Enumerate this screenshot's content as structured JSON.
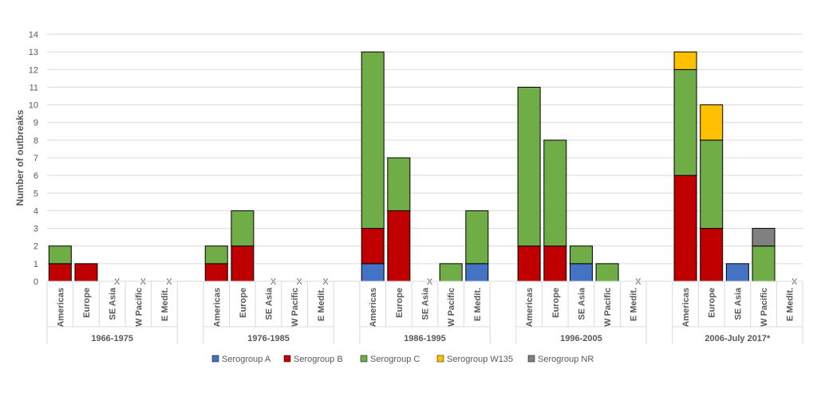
{
  "chart_data": {
    "type": "bar",
    "stacked": true,
    "ylabel": "Number of outbreaks",
    "ylim": [
      0,
      14
    ],
    "yticks": [
      0,
      1,
      2,
      3,
      4,
      5,
      6,
      7,
      8,
      9,
      10,
      11,
      12,
      13,
      14
    ],
    "grid": true,
    "legend_position": "bottom",
    "missing_marker": "X",
    "groups": [
      {
        "label": "1966-1975",
        "regions": [
          "Americas",
          "Europe",
          "SE Asia",
          "W Pacific",
          "E Medit."
        ]
      },
      {
        "label": "1976-1985",
        "regions": [
          "Americas",
          "Europe",
          "SE Asia",
          "W Pacific",
          "E Medit."
        ]
      },
      {
        "label": "1986-1995",
        "regions": [
          "Americas",
          "Europe",
          "SE Asia",
          "W Pacific",
          "E Medit."
        ]
      },
      {
        "label": "1996-2005",
        "regions": [
          "Americas",
          "Europe",
          "SE Asia",
          "W Pacific",
          "E Medit."
        ]
      },
      {
        "label": "2006-July 2017*",
        "regions": [
          "Americas",
          "Europe",
          "SE Asia",
          "W Pacific",
          "E Medit."
        ]
      }
    ],
    "missing": [
      [
        false,
        false,
        true,
        true,
        true
      ],
      [
        false,
        false,
        true,
        true,
        true
      ],
      [
        false,
        false,
        true,
        false,
        false
      ],
      [
        false,
        false,
        false,
        false,
        true
      ],
      [
        false,
        false,
        false,
        false,
        true
      ]
    ],
    "series": [
      {
        "name": "Serogroup A",
        "color": "#4472C4",
        "values": [
          [
            0,
            0,
            0,
            0,
            0
          ],
          [
            0,
            0,
            0,
            0,
            0
          ],
          [
            1,
            0,
            0,
            0,
            1
          ],
          [
            0,
            0,
            1,
            0,
            0
          ],
          [
            0,
            0,
            1,
            0,
            0
          ]
        ]
      },
      {
        "name": "Serogroup B",
        "color": "#C00000",
        "values": [
          [
            1,
            1,
            0,
            0,
            0
          ],
          [
            1,
            2,
            0,
            0,
            0
          ],
          [
            2,
            4,
            0,
            0,
            0
          ],
          [
            2,
            2,
            0,
            0,
            0
          ],
          [
            6,
            3,
            0,
            0,
            0
          ]
        ]
      },
      {
        "name": "Serogroup C",
        "color": "#70AD47",
        "values": [
          [
            1,
            0,
            0,
            0,
            0
          ],
          [
            1,
            2,
            0,
            0,
            0
          ],
          [
            10,
            3,
            0,
            1,
            3
          ],
          [
            9,
            6,
            1,
            1,
            0
          ],
          [
            6,
            5,
            0,
            2,
            0
          ]
        ]
      },
      {
        "name": "Serogroup W135",
        "color": "#FFC000",
        "values": [
          [
            0,
            0,
            0,
            0,
            0
          ],
          [
            0,
            0,
            0,
            0,
            0
          ],
          [
            0,
            0,
            0,
            0,
            0
          ],
          [
            0,
            0,
            0,
            0,
            0
          ],
          [
            1,
            2,
            0,
            0,
            0
          ]
        ]
      },
      {
        "name": "Serogroup NR",
        "color": "#808080",
        "values": [
          [
            0,
            0,
            0,
            0,
            0
          ],
          [
            0,
            0,
            0,
            0,
            0
          ],
          [
            0,
            0,
            0,
            0,
            0
          ],
          [
            0,
            0,
            0,
            0,
            0
          ],
          [
            0,
            0,
            0,
            1,
            0
          ]
        ]
      }
    ]
  },
  "colors": {
    "grid": "#D9D9D9",
    "axis_text": "#595959",
    "bar_outline": "#000000"
  }
}
